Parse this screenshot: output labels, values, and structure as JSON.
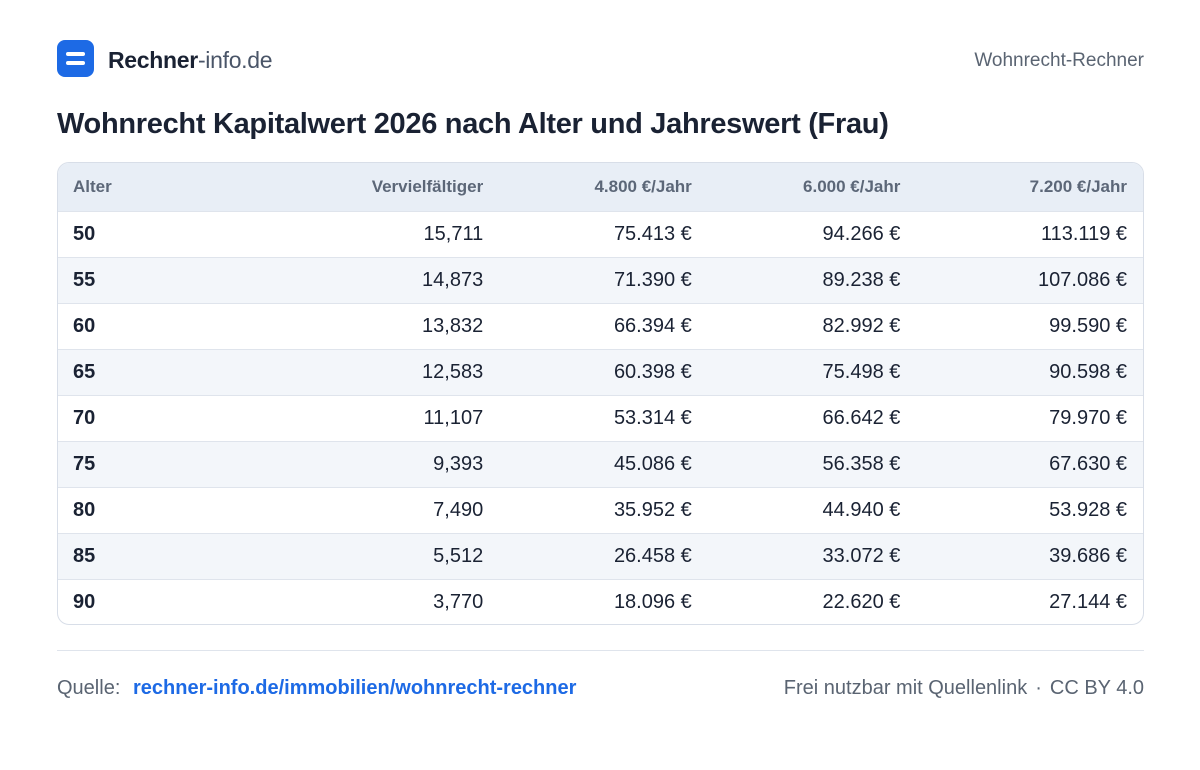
{
  "header": {
    "brand_bold": "Rechner",
    "brand_light": "-info.de",
    "right_label": "Wohnrecht-Rechner"
  },
  "title": "Wohnrecht Kapitalwert 2026 nach Alter und Jahreswert (Frau)",
  "table": {
    "columns": [
      "Alter",
      "Vervielfältiger",
      "4.800 €/Jahr",
      "6.000 €/Jahr",
      "7.200 €/Jahr"
    ],
    "rows": [
      [
        "50",
        "15,711",
        "75.413 €",
        "94.266 €",
        "113.119 €"
      ],
      [
        "55",
        "14,873",
        "71.390 €",
        "89.238 €",
        "107.086 €"
      ],
      [
        "60",
        "13,832",
        "66.394 €",
        "82.992 €",
        "99.590 €"
      ],
      [
        "65",
        "12,583",
        "60.398 €",
        "75.498 €",
        "90.598 €"
      ],
      [
        "70",
        "11,107",
        "53.314 €",
        "66.642 €",
        "79.970 €"
      ],
      [
        "75",
        "9,393",
        "45.086 €",
        "56.358 €",
        "67.630 €"
      ],
      [
        "80",
        "7,490",
        "35.952 €",
        "44.940 €",
        "53.928 €"
      ],
      [
        "85",
        "5,512",
        "26.458 €",
        "33.072 €",
        "39.686 €"
      ],
      [
        "90",
        "3,770",
        "18.096 €",
        "22.620 €",
        "27.144 €"
      ]
    ]
  },
  "footer": {
    "source_label": "Quelle:",
    "source_link": "rechner-info.de/immobilien/wohnrecht-rechner",
    "license_text": "Frei nutzbar mit Quellenlink",
    "separator": "·",
    "license": "CC BY 4.0"
  },
  "colors": {
    "accent": "#1d6ae5",
    "header_row": "#e8eef6",
    "zebra_row": "#f3f6fa"
  },
  "icons": {
    "logo": "equals-logo-icon"
  }
}
